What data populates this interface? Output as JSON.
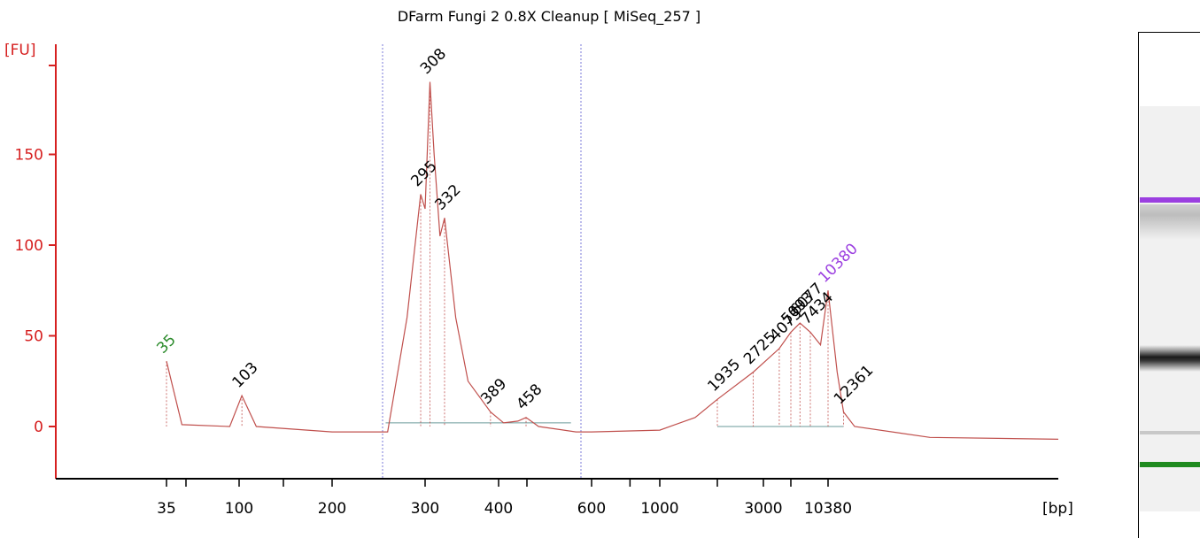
{
  "chart_data": {
    "type": "line",
    "title": "DFarm Fungi 2 0.8X Cleanup  [ MiSeq_257 ]",
    "ylabel": "[FU]",
    "xlabel": "[bp]",
    "ylim": [
      -30,
      210
    ],
    "yticks": [
      0,
      50,
      100,
      150
    ],
    "x_tick_labels": [
      "35",
      "100",
      "200",
      "300",
      "400",
      "600",
      "1000",
      "3000",
      "10380"
    ],
    "grid": false,
    "series": [
      {
        "x": [
          35,
          50,
          90,
          103,
          120,
          200,
          260,
          280,
          295,
          300,
          308,
          315,
          325,
          332,
          345,
          360,
          389,
          410,
          440,
          458,
          480,
          550,
          600,
          1000,
          1500,
          1935,
          2725,
          4075,
          5093,
          6077,
          7434,
          9000,
          10380,
          11500,
          12361,
          14000,
          20000,
          30000
        ],
        "y": [
          36,
          1,
          0,
          17,
          0,
          -3,
          -3,
          60,
          128,
          120,
          190,
          150,
          105,
          115,
          60,
          25,
          8,
          2,
          3,
          5,
          0,
          -3,
          -3,
          -2,
          5,
          15,
          30,
          43,
          52,
          57,
          52,
          45,
          75,
          30,
          8,
          0,
          -6,
          -7
        ]
      }
    ],
    "peak_labels": [
      {
        "x": 35,
        "label": "35",
        "color": "#2a8a2a"
      },
      {
        "x": 103,
        "label": "103",
        "color": "#000000"
      },
      {
        "x": 295,
        "label": "295",
        "color": "#000000"
      },
      {
        "x": 308,
        "label": "308",
        "color": "#000000"
      },
      {
        "x": 332,
        "label": "332",
        "color": "#000000"
      },
      {
        "x": 389,
        "label": "389",
        "color": "#000000"
      },
      {
        "x": 458,
        "label": "458",
        "color": "#000000"
      },
      {
        "x": 1935,
        "label": "1935",
        "color": "#000000"
      },
      {
        "x": 2725,
        "label": "2725",
        "color": "#000000"
      },
      {
        "x": 4075,
        "label": "4075",
        "color": "#000000"
      },
      {
        "x": 5093,
        "label": "5093",
        "color": "#000000"
      },
      {
        "x": 6077,
        "label": "6077",
        "color": "#000000"
      },
      {
        "x": 7434,
        "label": "7434",
        "color": "#000000"
      },
      {
        "x": 10380,
        "label": "10380",
        "color": "#9b3fe0"
      },
      {
        "x": 12361,
        "label": "12361",
        "color": "#000000"
      }
    ],
    "region_markers": [
      255,
      560
    ],
    "colors": {
      "trace": "#c0504d",
      "axis": "#d62020",
      "marker_green": "#2a8a2a",
      "marker_purple": "#9b3fe0",
      "region_line": "#7a7ad8",
      "baseline": "#6a9a9a"
    }
  }
}
